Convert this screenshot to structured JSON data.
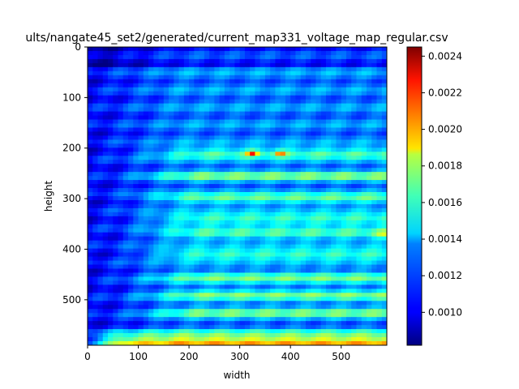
{
  "chart_data": {
    "type": "heatmap",
    "title": "ults/nangate45_set2/generated/current_map331_voltage_map_regular.csv",
    "xlabel": "width",
    "ylabel": "height",
    "colormap": "jet",
    "xlim": [
      0,
      590
    ],
    "ylim": [
      590,
      0
    ],
    "xticks": [
      "0",
      "100",
      "200",
      "300",
      "400",
      "500"
    ],
    "yticks": [
      "0",
      "100",
      "200",
      "300",
      "400",
      "500"
    ],
    "colorbar": {
      "min": 0.00082,
      "max": 0.00245,
      "ticks": [
        "0.0010",
        "0.0012",
        "0.0014",
        "0.0016",
        "0.0018",
        "0.0020",
        "0.0022",
        "0.0024"
      ]
    },
    "grid": false,
    "description_bands": {
      "low_region": "left columns near 0.0009-0.0011",
      "bright_rows_y": [
        210,
        260,
        300,
        340,
        370,
        410,
        450,
        490
      ],
      "hot_bottom_rows_y": [
        565,
        590
      ],
      "hot_spots": [
        [
          325,
          210
        ],
        [
          380,
          210
        ],
        [
          230,
          575
        ],
        [
          300,
          575
        ]
      ]
    }
  }
}
